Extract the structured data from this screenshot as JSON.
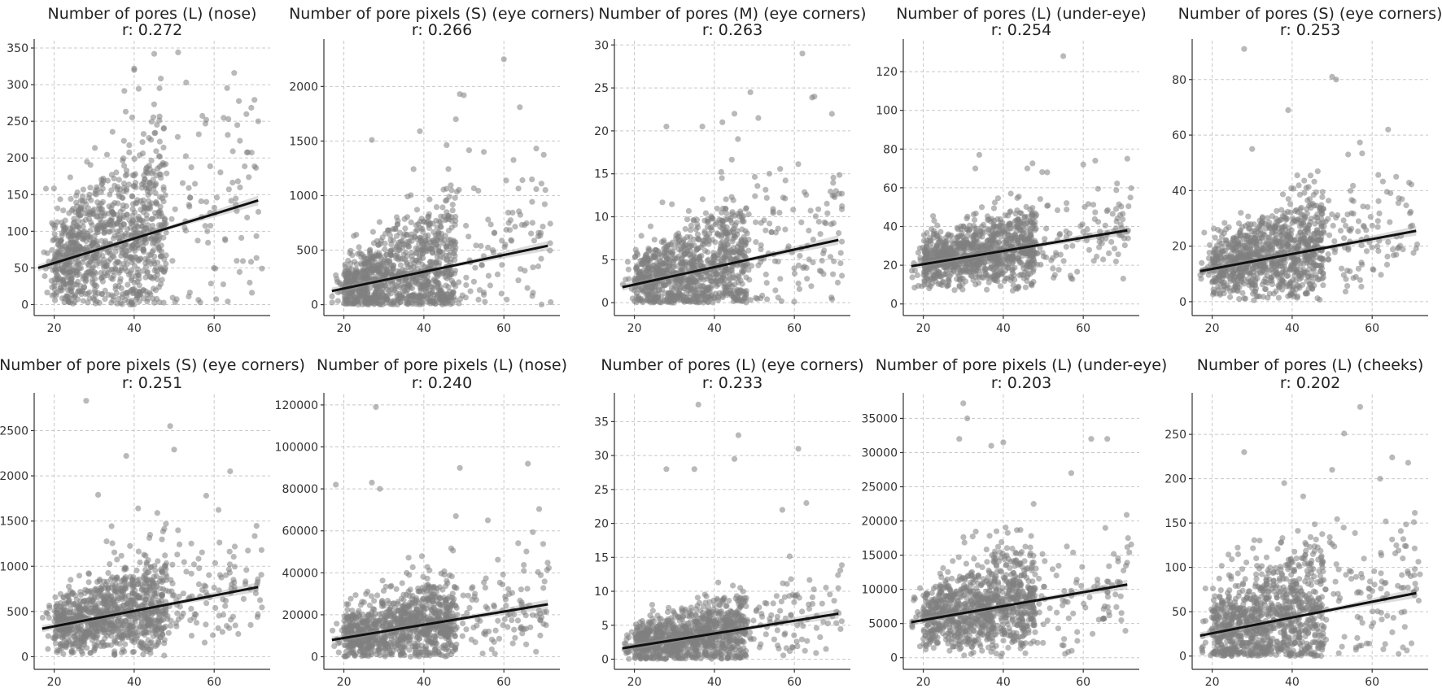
{
  "chart_data": [
    {
      "type": "scatter",
      "title": "Number of pores (L) (nose)",
      "r_label": "r: 0.272",
      "xlabel": "",
      "ylabel": "",
      "x_ticks": [
        20,
        40,
        60
      ],
      "y_ticks": [
        0,
        50,
        100,
        150,
        200,
        250,
        300,
        350
      ],
      "xlim": [
        15,
        74
      ],
      "ylim": [
        -15,
        360
      ],
      "fit": {
        "x": [
          16,
          71
        ],
        "y": [
          50,
          142
        ]
      },
      "spread": [
        40,
        110
      ],
      "n_points": 1100,
      "outliers": [
        [
          40,
          322
        ],
        [
          45,
          342
        ],
        [
          51,
          344
        ],
        [
          65,
          316
        ],
        [
          53,
          303
        ],
        [
          71,
          250
        ],
        [
          58,
          252
        ],
        [
          40,
          320
        ]
      ]
    },
    {
      "type": "scatter",
      "title": "Number of pore pixels (S) (eye corners)",
      "r_label": "r: 0.266",
      "xlabel": "",
      "ylabel": "",
      "x_ticks": [
        20,
        40,
        60
      ],
      "y_ticks": [
        0,
        500,
        1000,
        1500,
        2000
      ],
      "xlim": [
        15,
        74
      ],
      "ylim": [
        -100,
        2420
      ],
      "fit": {
        "x": [
          17,
          71
        ],
        "y": [
          125,
          540
        ]
      },
      "spread": [
        150,
        520
      ],
      "n_points": 1100,
      "outliers": [
        [
          60,
          2250
        ],
        [
          49,
          1930
        ],
        [
          50,
          1920
        ],
        [
          64,
          1810
        ],
        [
          48,
          1700
        ],
        [
          39,
          1590
        ],
        [
          27,
          1510
        ],
        [
          55,
          1400
        ]
      ]
    },
    {
      "type": "scatter",
      "title": "Number of pores (M) (eye corners)",
      "r_label": "r: 0.263",
      "xlabel": "",
      "ylabel": "",
      "x_ticks": [
        20,
        40,
        60
      ],
      "y_ticks": [
        0,
        5,
        10,
        15,
        20,
        25,
        30
      ],
      "xlim": [
        15,
        74
      ],
      "ylim": [
        -1.5,
        30.5
      ],
      "fit": {
        "x": [
          17,
          71
        ],
        "y": [
          1.8,
          7.3
        ]
      },
      "spread": [
        2,
        6
      ],
      "n_points": 1100,
      "outliers": [
        [
          62,
          29
        ],
        [
          49,
          24.5
        ],
        [
          65,
          24
        ],
        [
          45,
          22
        ],
        [
          51,
          21.5
        ],
        [
          37,
          20.5
        ],
        [
          28,
          20.5
        ],
        [
          42,
          21
        ]
      ]
    },
    {
      "type": "scatter",
      "title": "Number of pores (L) (under-eye)",
      "r_label": "r: 0.254",
      "xlabel": "",
      "ylabel": "",
      "x_ticks": [
        20,
        40,
        60
      ],
      "y_ticks": [
        0,
        20,
        40,
        60,
        80,
        100,
        120
      ],
      "xlim": [
        15,
        74
      ],
      "ylim": [
        -6,
        136
      ],
      "fit": {
        "x": [
          17,
          71
        ],
        "y": [
          19.5,
          38
        ]
      },
      "spread": [
        8,
        16
      ],
      "n_points": 1100,
      "outliers": [
        [
          55,
          128
        ],
        [
          71,
          75
        ],
        [
          63,
          74
        ],
        [
          34,
          77
        ],
        [
          51,
          68
        ],
        [
          46,
          70
        ],
        [
          60,
          72
        ],
        [
          33,
          70
        ]
      ]
    },
    {
      "type": "scatter",
      "title": "Number of  pores (S) (eye corners)",
      "r_label": "r: 0.253",
      "xlabel": "",
      "ylabel": "",
      "x_ticks": [
        20,
        40,
        60
      ],
      "y_ticks": [
        0,
        20,
        40,
        60,
        80
      ],
      "xlim": [
        15,
        74
      ],
      "ylim": [
        -5,
        94
      ],
      "fit": {
        "x": [
          17,
          71
        ],
        "y": [
          11,
          25.5
        ]
      },
      "spread": [
        6,
        15
      ],
      "n_points": 1100,
      "outliers": [
        [
          28,
          91
        ],
        [
          50,
          81
        ],
        [
          51,
          80
        ],
        [
          39,
          69
        ],
        [
          64,
          62
        ],
        [
          54,
          53
        ],
        [
          30,
          55
        ],
        [
          66,
          45
        ]
      ]
    },
    {
      "type": "scatter",
      "title": "Number of pore pixels (S) (eye corners)",
      "r_label": "r: 0.251",
      "xlabel": "",
      "ylabel": "",
      "x_ticks": [
        20,
        40,
        60
      ],
      "y_ticks": [
        0,
        500,
        1000,
        1500,
        2000,
        2500
      ],
      "xlim": [
        15,
        74
      ],
      "ylim": [
        -140,
        2900
      ],
      "fit": {
        "x": [
          17,
          71
        ],
        "y": [
          310,
          770
        ]
      },
      "spread": [
        200,
        450
      ],
      "n_points": 1100,
      "outliers": [
        [
          28,
          2830
        ],
        [
          49,
          2550
        ],
        [
          50,
          2290
        ],
        [
          38,
          2220
        ],
        [
          64,
          2050
        ],
        [
          31,
          1790
        ],
        [
          58,
          1780
        ],
        [
          41,
          1640
        ]
      ]
    },
    {
      "type": "scatter",
      "title": "Number of pore pixels (L) (nose)",
      "r_label": "r: 0.240",
      "xlabel": "",
      "ylabel": "",
      "x_ticks": [
        20,
        40,
        60
      ],
      "y_ticks": [
        0,
        20000,
        40000,
        60000,
        80000,
        100000,
        120000
      ],
      "xlim": [
        15,
        74
      ],
      "ylim": [
        -6000,
        125000
      ],
      "fit": {
        "x": [
          17,
          71
        ],
        "y": [
          8000,
          25000
        ]
      },
      "spread": [
        7000,
        16000
      ],
      "n_points": 1100,
      "outliers": [
        [
          28,
          119000
        ],
        [
          66,
          92000
        ],
        [
          49,
          90000
        ],
        [
          18,
          82000
        ],
        [
          27,
          83000
        ],
        [
          29,
          80000
        ],
        [
          48,
          67000
        ],
        [
          56,
          65000
        ]
      ]
    },
    {
      "type": "scatter",
      "title": "Number of pores (L) (eye corners)",
      "r_label": "r: 0.233",
      "xlabel": "",
      "ylabel": "",
      "x_ticks": [
        20,
        40,
        60
      ],
      "y_ticks": [
        0,
        5,
        10,
        15,
        20,
        25,
        30,
        35
      ],
      "xlim": [
        15,
        74
      ],
      "ylim": [
        -1.5,
        39
      ],
      "fit": {
        "x": [
          17,
          71
        ],
        "y": [
          1.6,
          6.7
        ]
      },
      "spread": [
        1.5,
        4.5
      ],
      "n_points": 1100,
      "outliers": [
        [
          36,
          37.5
        ],
        [
          46,
          33
        ],
        [
          61,
          31
        ],
        [
          45,
          29.5
        ],
        [
          28,
          28
        ],
        [
          35,
          28
        ],
        [
          63,
          23
        ],
        [
          57,
          22
        ]
      ]
    },
    {
      "type": "scatter",
      "title": "Number of pore pixels (L) (under-eye)",
      "r_label": "r: 0.203",
      "xlabel": "",
      "ylabel": "",
      "x_ticks": [
        20,
        40,
        60
      ],
      "y_ticks": [
        0,
        5000,
        10000,
        15000,
        20000,
        25000,
        30000,
        35000
      ],
      "xlim": [
        15,
        74
      ],
      "ylim": [
        -1700,
        38500
      ],
      "fit": {
        "x": [
          17,
          71
        ],
        "y": [
          5200,
          10700
        ]
      },
      "spread": [
        3000,
        6000
      ],
      "n_points": 1100,
      "outliers": [
        [
          30,
          37200
        ],
        [
          31,
          35000
        ],
        [
          29,
          32000
        ],
        [
          62,
          32000
        ],
        [
          66,
          32000
        ],
        [
          37,
          31000
        ],
        [
          40,
          31500
        ],
        [
          57,
          27000
        ]
      ]
    },
    {
      "type": "scatter",
      "title": "Number of pores (L) (cheeks)",
      "r_label": "r: 0.202",
      "xlabel": "",
      "ylabel": "",
      "x_ticks": [
        20,
        40,
        60
      ],
      "y_ticks": [
        0,
        50,
        100,
        150,
        200,
        250
      ],
      "xlim": [
        15,
        74
      ],
      "ylim": [
        -15,
        295
      ],
      "fit": {
        "x": [
          17,
          71
        ],
        "y": [
          23,
          71
        ]
      },
      "spread": [
        25,
        65
      ],
      "n_points": 1100,
      "outliers": [
        [
          57,
          281
        ],
        [
          53,
          251
        ],
        [
          65,
          224
        ],
        [
          28,
          230
        ],
        [
          69,
          218
        ],
        [
          38,
          195
        ],
        [
          50,
          210
        ],
        [
          62,
          200
        ]
      ]
    }
  ]
}
